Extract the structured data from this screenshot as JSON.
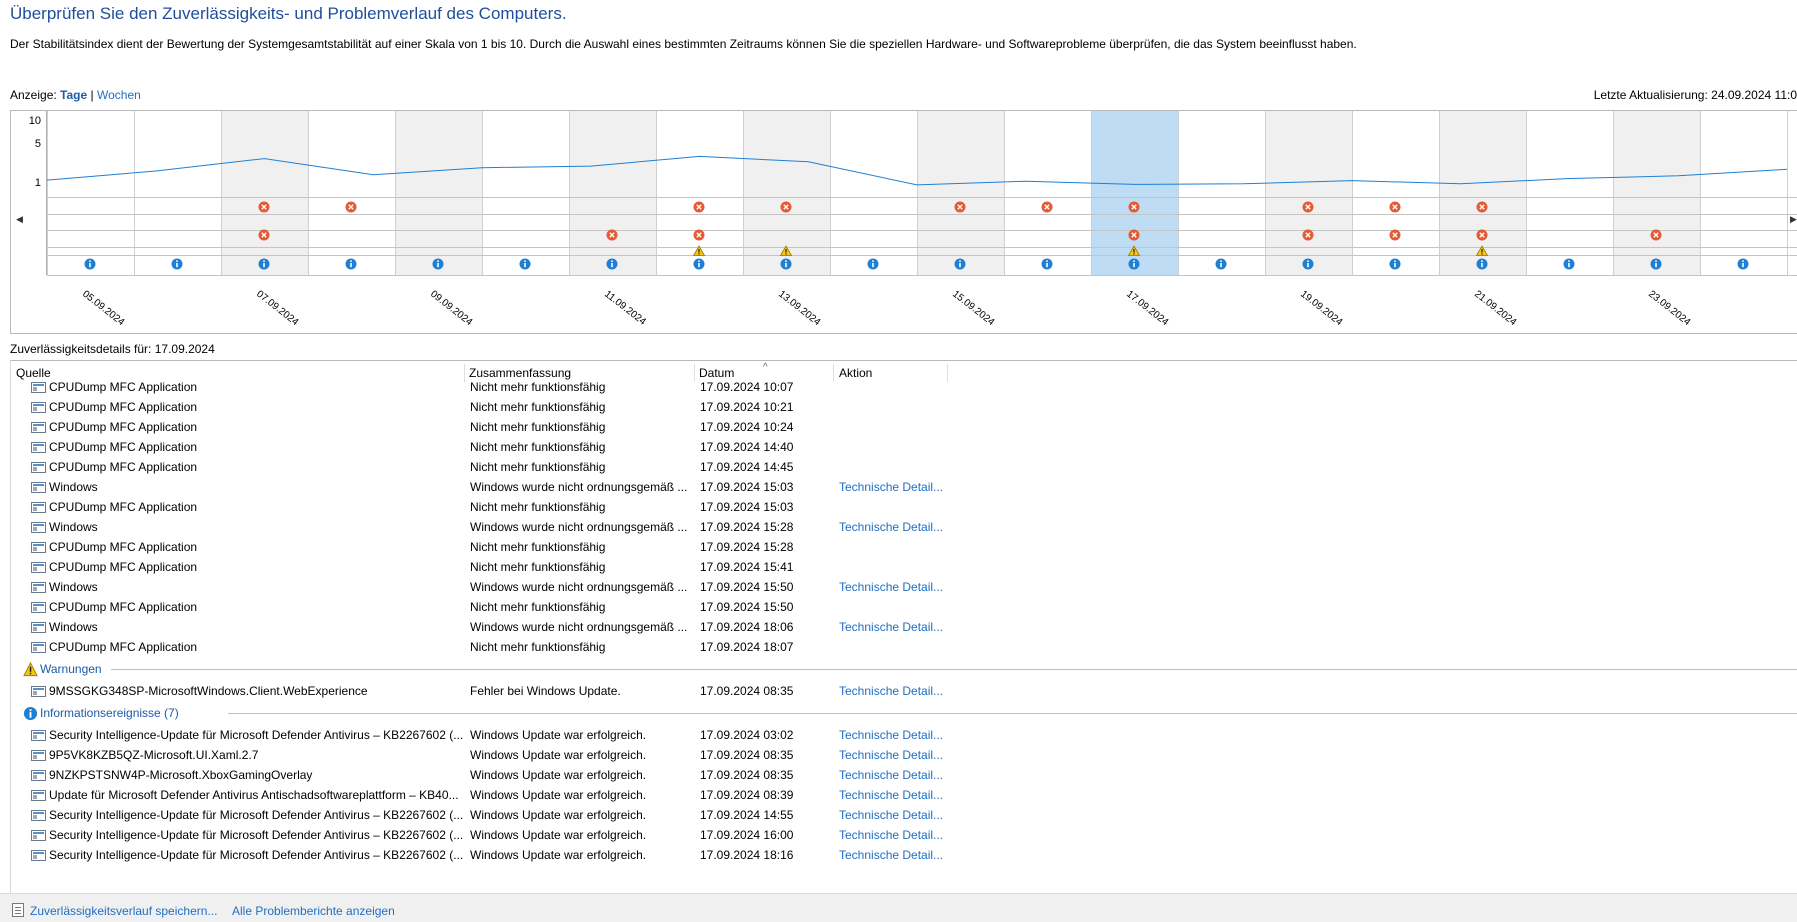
{
  "header": {
    "title": "Überprüfen Sie den Zuverlässigkeits- und Problemverlauf des Computers.",
    "description": "Der Stabilitätsindex dient der Bewertung der Systemgesamtstabilität auf einer Skala von 1 bis 10. Durch die Auswahl eines bestimmten Zeitraums können Sie die speziellen Hardware- und Softwareprobleme überprüfen, die das System beeinflusst haben."
  },
  "view": {
    "prefix": "Anzeige:",
    "days": "Tage",
    "separator": "|",
    "weeks": "Wochen",
    "last_update": "Letzte Aktualisierung: 24.09.2024 11:0"
  },
  "chart": {
    "y_ticks": [
      "10",
      "5",
      "1"
    ],
    "selected_column": 12,
    "date_labels": [
      "05.09.2024",
      "07.09.2024",
      "09.09.2024",
      "11.09.2024",
      "13.09.2024",
      "15.09.2024",
      "17.09.2024",
      "19.09.2024",
      "21.09.2024",
      "23.09.2024"
    ],
    "stability_index": [
      1.55,
      2.4,
      3.55,
      2.05,
      2.7,
      2.85,
      3.75,
      3.25,
      1.1,
      1.45,
      1.15,
      1.2,
      1.5,
      1.2,
      1.7,
      1.95,
      2.55
    ],
    "events": {
      "app_errors": [
        2,
        3,
        7,
        8,
        10,
        11,
        12,
        14,
        15,
        16
      ],
      "windows_errors": [
        2,
        6,
        7,
        12,
        14,
        15,
        16,
        18
      ],
      "warnings": [
        7,
        8,
        12,
        16
      ],
      "info": [
        0,
        1,
        2,
        3,
        4,
        5,
        6,
        7,
        8,
        9,
        10,
        11,
        12,
        13,
        14,
        15,
        16,
        17,
        18,
        19
      ]
    },
    "colors": {
      "line": "#1f7fd4",
      "selection": "#bfdcf5",
      "weekend": "#f0f0f0",
      "error": "#e45a32",
      "warning": "#f5c518",
      "info": "#1f7fd4"
    }
  },
  "details": {
    "title": "Zuverlässigkeitsdetails für: 17.09.2024",
    "columns": [
      "Quelle",
      "Zusammenfassung",
      "Datum",
      "Aktion"
    ],
    "top_partial_row": [
      "CPUDump MFC Application",
      "Nicht mehr funktionsfähig",
      "17.09.2024 10:07",
      ""
    ],
    "error_rows": [
      [
        "CPUDump MFC Application",
        "Nicht mehr funktionsfähig",
        "17.09.2024 10:21",
        ""
      ],
      [
        "CPUDump MFC Application",
        "Nicht mehr funktionsfähig",
        "17.09.2024 10:24",
        ""
      ],
      [
        "CPUDump MFC Application",
        "Nicht mehr funktionsfähig",
        "17.09.2024 14:40",
        ""
      ],
      [
        "CPUDump MFC Application",
        "Nicht mehr funktionsfähig",
        "17.09.2024 14:45",
        ""
      ],
      [
        "Windows",
        "Windows wurde nicht ordnungsgemäß ...",
        "17.09.2024 15:03",
        "Technische Detail..."
      ],
      [
        "CPUDump MFC Application",
        "Nicht mehr funktionsfähig",
        "17.09.2024 15:03",
        ""
      ],
      [
        "Windows",
        "Windows wurde nicht ordnungsgemäß ...",
        "17.09.2024 15:28",
        "Technische Detail..."
      ],
      [
        "CPUDump MFC Application",
        "Nicht mehr funktionsfähig",
        "17.09.2024 15:28",
        ""
      ],
      [
        "CPUDump MFC Application",
        "Nicht mehr funktionsfähig",
        "17.09.2024 15:41",
        ""
      ],
      [
        "Windows",
        "Windows wurde nicht ordnungsgemäß ...",
        "17.09.2024 15:50",
        "Technische Detail..."
      ],
      [
        "CPUDump MFC Application",
        "Nicht mehr funktionsfähig",
        "17.09.2024 15:50",
        ""
      ],
      [
        "Windows",
        "Windows wurde nicht ordnungsgemäß ...",
        "17.09.2024 18:06",
        "Technische Detail..."
      ],
      [
        "CPUDump MFC Application",
        "Nicht mehr funktionsfähig",
        "17.09.2024 18:07",
        ""
      ]
    ],
    "warnings_label": "Warnungen",
    "warning_rows": [
      [
        "9MSSGKG348SP-MicrosoftWindows.Client.WebExperience",
        "Fehler bei Windows Update.",
        "17.09.2024 08:35",
        "Technische Detail..."
      ]
    ],
    "info_label": "Informationsereignisse (7)",
    "info_rows": [
      [
        "Security Intelligence-Update für Microsoft Defender Antivirus – KB2267602 (...",
        "Windows Update war erfolgreich.",
        "17.09.2024 03:02",
        "Technische Detail..."
      ],
      [
        "9P5VK8KZB5QZ-Microsoft.UI.Xaml.2.7",
        "Windows Update war erfolgreich.",
        "17.09.2024 08:35",
        "Technische Detail..."
      ],
      [
        "9NZKPSTSNW4P-Microsoft.XboxGamingOverlay",
        "Windows Update war erfolgreich.",
        "17.09.2024 08:35",
        "Technische Detail..."
      ],
      [
        "Update für Microsoft Defender Antivirus Antischadsoftwareplattform – KB40...",
        "Windows Update war erfolgreich.",
        "17.09.2024 08:39",
        "Technische Detail..."
      ],
      [
        "Security Intelligence-Update für Microsoft Defender Antivirus – KB2267602 (...",
        "Windows Update war erfolgreich.",
        "17.09.2024 14:55",
        "Technische Detail..."
      ],
      [
        "Security Intelligence-Update für Microsoft Defender Antivirus – KB2267602 (...",
        "Windows Update war erfolgreich.",
        "17.09.2024 16:00",
        "Technische Detail..."
      ],
      [
        "Security Intelligence-Update für Microsoft Defender Antivirus – KB2267602 (...",
        "Windows Update war erfolgreich.",
        "17.09.2024 18:16",
        "Technische Detail..."
      ]
    ]
  },
  "footer": {
    "save_link": "Zuverlässigkeitsverlauf speichern...",
    "reports_link": "Alle Problemberichte anzeigen"
  }
}
